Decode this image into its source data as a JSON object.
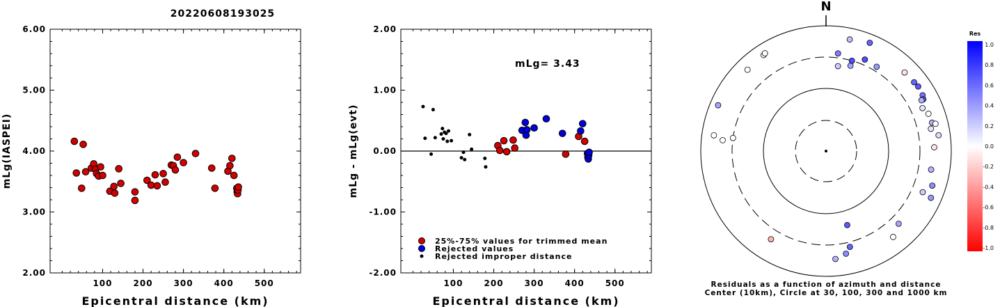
{
  "title": "20220608193025",
  "colors": {
    "red": "#d40000",
    "blue": "#0000dd",
    "black": "#000000"
  },
  "chart_data": [
    {
      "type": "scatter",
      "title": "",
      "xlabel": "Epicentral distance (km)",
      "ylabel": "mLg(IASPEI)",
      "xlim": [
        -30,
        590
      ],
      "ylim": [
        2.0,
        6.0
      ],
      "x_ticks": [
        "100",
        "200",
        "300",
        "400",
        "500"
      ],
      "x_tick_values": [
        100,
        200,
        300,
        400,
        500
      ],
      "y_ticks": [
        "2.00",
        "3.00",
        "4.00",
        "5.00",
        "6.00"
      ],
      "y_tick_values": [
        2,
        3,
        4,
        5,
        6
      ],
      "series": [
        {
          "color": "#d40000",
          "points": [
            [
              30,
              4.16
            ],
            [
              35,
              3.64
            ],
            [
              48,
              3.39
            ],
            [
              52,
              4.11
            ],
            [
              58,
              3.66
            ],
            [
              72,
              3.72
            ],
            [
              78,
              3.79
            ],
            [
              82,
              3.7
            ],
            [
              85,
              3.63
            ],
            [
              90,
              3.59
            ],
            [
              95,
              3.74
            ],
            [
              100,
              3.6
            ],
            [
              118,
              3.34
            ],
            [
              128,
              3.42
            ],
            [
              130,
              3.31
            ],
            [
              140,
              3.71
            ],
            [
              145,
              3.47
            ],
            [
              180,
              3.33
            ],
            [
              180,
              3.19
            ],
            [
              210,
              3.52
            ],
            [
              220,
              3.44
            ],
            [
              230,
              3.61
            ],
            [
              235,
              3.43
            ],
            [
              250,
              3.63
            ],
            [
              255,
              3.49
            ],
            [
              270,
              3.77
            ],
            [
              275,
              3.76
            ],
            [
              280,
              3.69
            ],
            [
              285,
              3.9
            ],
            [
              300,
              3.81
            ],
            [
              330,
              3.96
            ],
            [
              370,
              3.72
            ],
            [
              378,
              3.39
            ],
            [
              410,
              3.67
            ],
            [
              415,
              3.76
            ],
            [
              420,
              3.88
            ],
            [
              425,
              3.6
            ],
            [
              432,
              3.39
            ],
            [
              433,
              3.33
            ],
            [
              434,
              3.3
            ],
            [
              435,
              3.36
            ],
            [
              436,
              3.41
            ]
          ]
        }
      ]
    },
    {
      "type": "scatter",
      "title": "",
      "xlabel": "Epicentral distance (km)",
      "ylabel": "mLg - mLg(evt)",
      "annotation": "mLg= 3.43",
      "xlim": [
        -30,
        590
      ],
      "ylim": [
        -2.0,
        2.0
      ],
      "x_ticks": [
        "100",
        "200",
        "300",
        "400",
        "500"
      ],
      "x_tick_values": [
        100,
        200,
        300,
        400,
        500
      ],
      "y_ticks": [
        "-2.00",
        "-1.00",
        "0.00",
        "1.00",
        "2.00"
      ],
      "y_tick_values": [
        -2,
        -1,
        0,
        1,
        2
      ],
      "zero_line": true,
      "legend_position": "bottom-left",
      "series": [
        {
          "name": "25%-75% values for trimmed mean",
          "color": "#d40000",
          "marker": "circle",
          "points": [
            [
              210,
              0.09
            ],
            [
              215,
              0.01
            ],
            [
              225,
              0.17
            ],
            [
              232,
              -0.01
            ],
            [
              248,
              0.18
            ],
            [
              252,
              0.05
            ],
            [
              378,
              -0.05
            ],
            [
              410,
              0.24
            ],
            [
              425,
              0.16
            ]
          ]
        },
        {
          "name": "Rejected values",
          "color": "#0000dd",
          "marker": "circle",
          "points": [
            [
              270,
              0.34
            ],
            [
              278,
              0.47
            ],
            [
              280,
              0.26
            ],
            [
              282,
              0.35
            ],
            [
              300,
              0.38
            ],
            [
              330,
              0.53
            ],
            [
              370,
              0.29
            ],
            [
              415,
              0.33
            ],
            [
              420,
              0.45
            ],
            [
              432,
              -0.04
            ],
            [
              433,
              -0.1
            ],
            [
              434,
              -0.13
            ],
            [
              435,
              -0.07
            ],
            [
              436,
              -0.02
            ]
          ]
        },
        {
          "name": "Rejected improper distance",
          "color": "#000000",
          "marker": "dot",
          "points": [
            [
              25,
              0.73
            ],
            [
              30,
              0.21
            ],
            [
              45,
              -0.05
            ],
            [
              50,
              0.68
            ],
            [
              55,
              0.22
            ],
            [
              70,
              0.28
            ],
            [
              73,
              0.37
            ],
            [
              75,
              0.2
            ],
            [
              78,
              0.31
            ],
            [
              82,
              0.29
            ],
            [
              85,
              0.16
            ],
            [
              88,
              0.33
            ],
            [
              95,
              0.17
            ],
            [
              120,
              -0.11
            ],
            [
              125,
              -0.02
            ],
            [
              128,
              -0.14
            ],
            [
              140,
              0.27
            ],
            [
              145,
              0.03
            ],
            [
              178,
              -0.12
            ],
            [
              180,
              -0.26
            ]
          ]
        }
      ]
    },
    {
      "type": "scatter",
      "title": "",
      "north_label": "N",
      "caption_line1": "Residuals as a function of azimuth and distance",
      "caption_line2": "Center (10km), Circle at 30, 100, 300 and 1000 km",
      "colorbar": {
        "title": "Res",
        "ticks": [
          "1.0",
          "0.8",
          "0.6",
          "0.4",
          "0.2",
          "0.0",
          "-0.2",
          "-0.4",
          "-0.6",
          "-0.8",
          "-1.0"
        ],
        "range": [
          -1.0,
          1.0
        ]
      },
      "rings_km": [
        30,
        100,
        300,
        1000
      ],
      "points_azimuth_res": [
        [
          -33,
          660,
          0.0
        ],
        [
          -32,
          680,
          0.0
        ],
        [
          -44,
          625,
          0.0
        ],
        [
          -67,
          735,
          0.35
        ],
        [
          -82,
          630,
          0.0
        ],
        [
          -84,
          440,
          0.0
        ],
        [
          -82,
          300,
          0.0
        ],
        [
          -148,
          440,
          -0.3
        ],
        [
          22,
          720,
          0.6
        ],
        [
          12,
          650,
          0.25
        ],
        [
          7,
          355,
          0.5
        ],
        [
          16,
          250,
          0.35
        ],
        [
          16,
          300,
          0.7
        ],
        [
          23,
          370,
          0.7
        ],
        [
          31,
          355,
          0.4
        ],
        [
          8,
          225,
          0.2
        ],
        [
          45,
          580,
          -0.1
        ],
        [
          52,
          595,
          0.6
        ],
        [
          55,
          612,
          0.65
        ],
        [
          60,
          590,
          0.55
        ],
        [
          62,
          560,
          0.65
        ],
        [
          62,
          518,
          0.3
        ],
        [
          66,
          470,
          0.1
        ],
        [
          70,
          535,
          0.0
        ],
        [
          75,
          550,
          0.3
        ],
        [
          76,
          620,
          0.0
        ],
        [
          78,
          500,
          0.1
        ],
        [
          82,
          640,
          0.15
        ],
        [
          88,
          520,
          -0.1
        ],
        [
          100,
          490,
          0.3
        ],
        [
          108,
          595,
          0.45
        ],
        [
          113,
          460,
          0.2
        ],
        [
          114,
          670,
          0.4
        ],
        [
          135,
          420,
          0.35
        ],
        [
          142,
          535,
          0.0
        ],
        [
          164,
          165,
          0.65
        ],
        [
          166,
          360,
          0.6
        ],
        [
          169,
          450,
          0.45
        ],
        [
          175,
          520,
          0.3
        ]
      ]
    }
  ]
}
